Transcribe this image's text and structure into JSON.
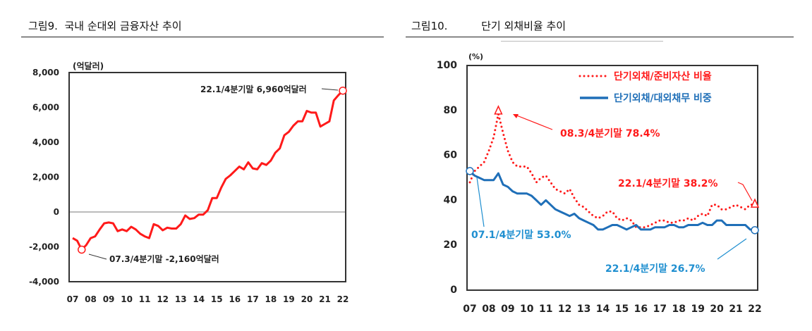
{
  "figures": {
    "fig9_title": "그림9.  국내 순대외 금융자산 추이",
    "fig10_title": "그림10.          단기 외채비율 추이"
  },
  "chart_data": [
    {
      "type": "line",
      "title": "국내 순대외 금융자산 추이",
      "ylabel": "(억달러)",
      "ylim": [
        -4000,
        8000
      ],
      "yticks": [
        "8,000",
        "6,000",
        "4,000",
        "2,000",
        "0",
        "-2,000",
        "-4,000"
      ],
      "ytick_values": [
        8000,
        6000,
        4000,
        2000,
        0,
        -2000,
        -4000
      ],
      "xtick_labels": [
        "07",
        "08",
        "09",
        "10",
        "11",
        "12",
        "13",
        "14",
        "15",
        "16",
        "17",
        "18",
        "19",
        "20",
        "21",
        "22"
      ],
      "x_frequency": "quarterly, 2007Q1-2022Q1",
      "zero_line": true,
      "series": [
        {
          "color": "#ff1a1a",
          "style": "solid",
          "values": [
            -1500,
            -1650,
            -2160,
            -1900,
            -1500,
            -1400,
            -1000,
            -650,
            -600,
            -650,
            -1100,
            -1000,
            -1100,
            -850,
            -1000,
            -1250,
            -1400,
            -1500,
            -700,
            -800,
            -1050,
            -900,
            -950,
            -950,
            -700,
            -200,
            -400,
            -350,
            -150,
            -150,
            100,
            800,
            800,
            1400,
            1900,
            2100,
            2350,
            2600,
            2450,
            2850,
            2500,
            2450,
            2800,
            2700,
            2950,
            3400,
            3650,
            4400,
            4600,
            4950,
            5200,
            5200,
            5800,
            5700,
            5700,
            4900,
            5050,
            5200,
            6400,
            6700,
            6960
          ]
        }
      ],
      "annotations": [
        {
          "text": "22.1/4분기말 6,960억달러",
          "index": 60,
          "value": 6960
        },
        {
          "text": "07.3/4분기말 -2,160억달러",
          "index": 2,
          "value": -2160
        }
      ]
    },
    {
      "type": "line",
      "title": "단기 외채비율 추이",
      "ylabel": "(%)",
      "ylim": [
        0,
        100
      ],
      "yticks": [
        "100",
        "80",
        "60",
        "40",
        "20",
        "0"
      ],
      "ytick_values": [
        100,
        80,
        60,
        40,
        20,
        0
      ],
      "xtick_labels": [
        "07",
        "08",
        "09",
        "10",
        "11",
        "12",
        "13",
        "14",
        "15",
        "16",
        "17",
        "18",
        "19",
        "20",
        "21",
        "22"
      ],
      "x_frequency": "quarterly, 2007Q1-2022Q1",
      "legend_position": "top-right",
      "series": [
        {
          "name": "단기외채/준비자산 비율",
          "color": "#ff1a1a",
          "style": "dotted",
          "values": [
            48,
            53,
            55,
            57,
            62,
            68,
            78.4,
            70,
            62,
            57,
            55,
            55,
            55,
            52,
            48,
            50,
            51,
            48,
            45,
            44,
            43,
            45,
            41,
            38,
            37,
            35,
            33,
            32,
            33,
            35,
            35,
            32,
            31,
            32,
            31,
            28,
            28,
            28,
            29,
            30,
            31,
            31,
            30,
            30,
            31,
            31,
            32,
            31,
            33,
            34,
            33,
            38,
            38,
            36,
            36,
            37,
            38,
            37,
            36,
            38,
            38.2
          ]
        },
        {
          "name": "단기외채/대외채무 비중",
          "color": "#1f6fb8",
          "style": "solid",
          "values": [
            53,
            51,
            50,
            49,
            49,
            49,
            52,
            47,
            46,
            44,
            43,
            43,
            43,
            42,
            40,
            38,
            40,
            38,
            36,
            35,
            34,
            33,
            34,
            32,
            31,
            30,
            29,
            27,
            27,
            28,
            29,
            29,
            28,
            27,
            28,
            29,
            27,
            27,
            27,
            28,
            28,
            28,
            29,
            29,
            28,
            28,
            29,
            29,
            29,
            30,
            29,
            29,
            31,
            31,
            29,
            29,
            29,
            29,
            29,
            27,
            26.7
          ]
        }
      ],
      "annotations": [
        {
          "text": "08.3/4분기말 78.4%",
          "series": 0,
          "index": 6,
          "value": 78.4,
          "color": "#ff1a1a"
        },
        {
          "text": "22.1/4분기말 38.2%",
          "series": 0,
          "index": 60,
          "value": 38.2,
          "color": "#ff1a1a"
        },
        {
          "text": "07.1/4분기말 53.0%",
          "series": 1,
          "index": 0,
          "value": 53.0,
          "color": "#1f8fd0"
        },
        {
          "text": "22.1/4분기말 26.7%",
          "series": 1,
          "index": 60,
          "value": 26.7,
          "color": "#1f8fd0"
        }
      ]
    }
  ]
}
